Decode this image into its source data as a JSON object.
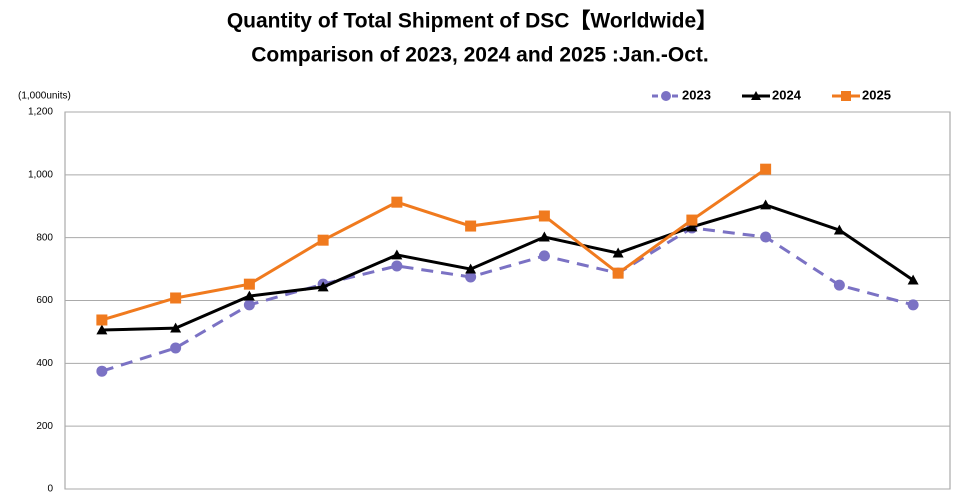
{
  "chart_data": {
    "type": "line",
    "title": "Quantity of Total Shipment of DSC【Worldwide】",
    "subtitle": "Comparison of 2023, 2024 and 2025 :Jan.-Oct.",
    "y_label": "(1,000units)",
    "categories": [
      null,
      null,
      null,
      null,
      null,
      null,
      null,
      null,
      null,
      null,
      null,
      null
    ],
    "series": [
      {
        "name": "2023",
        "color": "#7b72c4",
        "marker": "circle",
        "linestyle": "dashed",
        "values": [
          375,
          449,
          586,
          652,
          710,
          675,
          742,
          687,
          831,
          802,
          649,
          586
        ]
      },
      {
        "name": "2024",
        "color": "#000000",
        "marker": "triangle",
        "linestyle": "solid",
        "values": [
          506,
          512,
          614,
          643,
          745,
          700,
          802,
          751,
          834,
          904,
          824,
          665
        ]
      },
      {
        "name": "2025",
        "color": "#f07a1e",
        "marker": "square",
        "linestyle": "solid",
        "values": [
          538,
          608,
          652,
          792,
          913,
          837,
          869,
          687,
          856,
          1018,
          null,
          null
        ]
      }
    ],
    "ylim": [
      0,
      1200
    ],
    "yticks": [
      0,
      200,
      400,
      600,
      800,
      {
        "value": 1000,
        "label": "1,000"
      },
      {
        "value": 1200,
        "label": "1,200"
      }
    ],
    "grid": true,
    "legend": "top-right"
  }
}
